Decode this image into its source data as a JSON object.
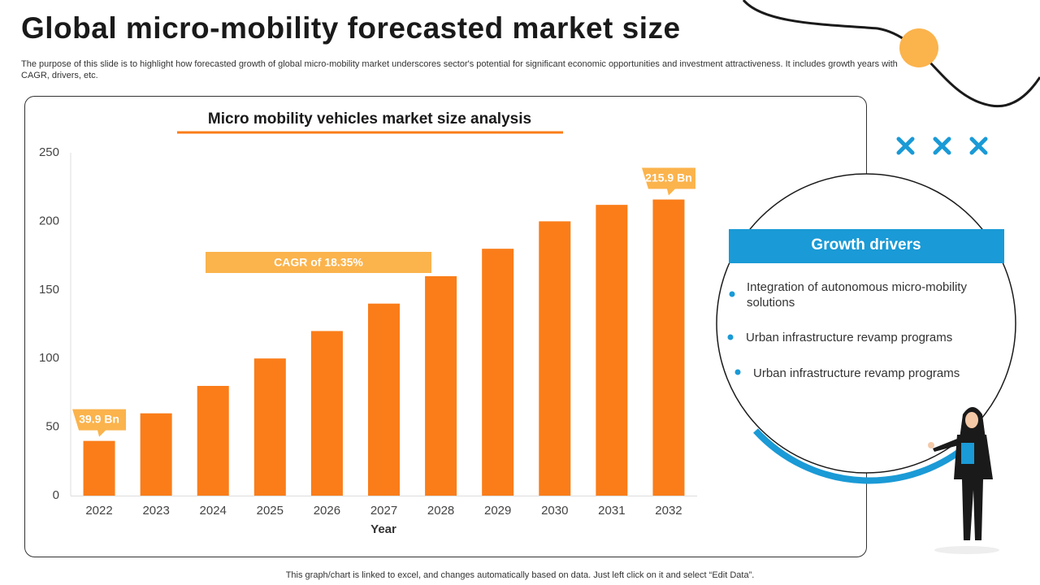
{
  "title": "Global micro-mobility forecasted market size",
  "subtitle": "The purpose of this slide is to highlight how forecasted growth of global micro-mobility market underscores sector's potential for significant economic opportunities and investment attractiveness. It includes growth years with CAGR, drivers, etc.",
  "chart_data": {
    "type": "bar",
    "title": "Micro mobility vehicles market size analysis",
    "x_label": "Year",
    "categories": [
      "2022",
      "2023",
      "2024",
      "2025",
      "2026",
      "2027",
      "2028",
      "2029",
      "2030",
      "2031",
      "2032"
    ],
    "values": [
      39.9,
      60,
      80,
      100,
      120,
      140,
      160,
      180,
      200,
      212,
      215.9
    ],
    "value_labels": [
      "39.9 Bn",
      null,
      null,
      null,
      null,
      null,
      null,
      null,
      null,
      null,
      "215.9 Bn"
    ],
    "color": "#fa7d19",
    "annotation": "CAGR of 18.35%",
    "ylim": [
      0,
      250
    ],
    "yticks": [
      0,
      50,
      100,
      150,
      200,
      250
    ],
    "grid": false
  },
  "growth_drivers": {
    "title": "Growth drivers",
    "items": [
      "Integration of autonomous micro-mobility solutions",
      "Urban infrastructure revamp programs",
      "Urban infrastructure revamp programs"
    ]
  },
  "footer": "This graph/chart is linked to excel, and changes automatically based on data. Just left click on it and select “Edit Data”."
}
